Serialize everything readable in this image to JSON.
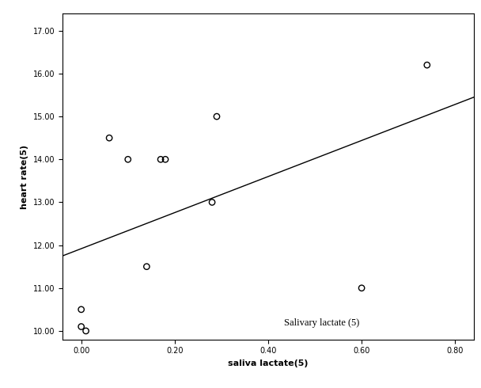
{
  "chart_data": {
    "type": "scatter",
    "x_label": "saliva lactate(5)",
    "y_label": "heart rate(5)",
    "annotation": "Salivary lactate (5)",
    "x": [
      0.0,
      0.0,
      0.01,
      0.06,
      0.1,
      0.17,
      0.18,
      0.14,
      0.28,
      0.29,
      0.6,
      0.74
    ],
    "values": [
      10.5,
      10.1,
      10.0,
      14.5,
      14.0,
      14.0,
      14.0,
      11.5,
      13.0,
      15.0,
      11.0,
      16.2
    ],
    "fit_line": {
      "x": [
        -0.04,
        0.84
      ],
      "y": [
        11.75,
        15.45
      ]
    },
    "color": "#000000",
    "marker": "o",
    "xlim": [
      -0.04,
      0.84
    ],
    "ylim": [
      9.8,
      17.4
    ],
    "xticks": [
      {
        "value": 0.0,
        "label": "0.00"
      },
      {
        "value": 0.2,
        "label": "0.20"
      },
      {
        "value": 0.4,
        "label": "0.40"
      },
      {
        "value": 0.6,
        "label": "0.60"
      },
      {
        "value": 0.8,
        "label": "0.80"
      }
    ],
    "yticks": [
      {
        "value": 10.0,
        "label": "10.00"
      },
      {
        "value": 11.0,
        "label": "11.00"
      },
      {
        "value": 12.0,
        "label": "12.00"
      },
      {
        "value": 13.0,
        "label": "13.00"
      },
      {
        "value": 14.0,
        "label": "14.00"
      },
      {
        "value": 15.0,
        "label": "15.00"
      },
      {
        "value": 16.0,
        "label": "16.00"
      },
      {
        "value": 17.0,
        "label": "17.00"
      }
    ],
    "grid": false
  }
}
